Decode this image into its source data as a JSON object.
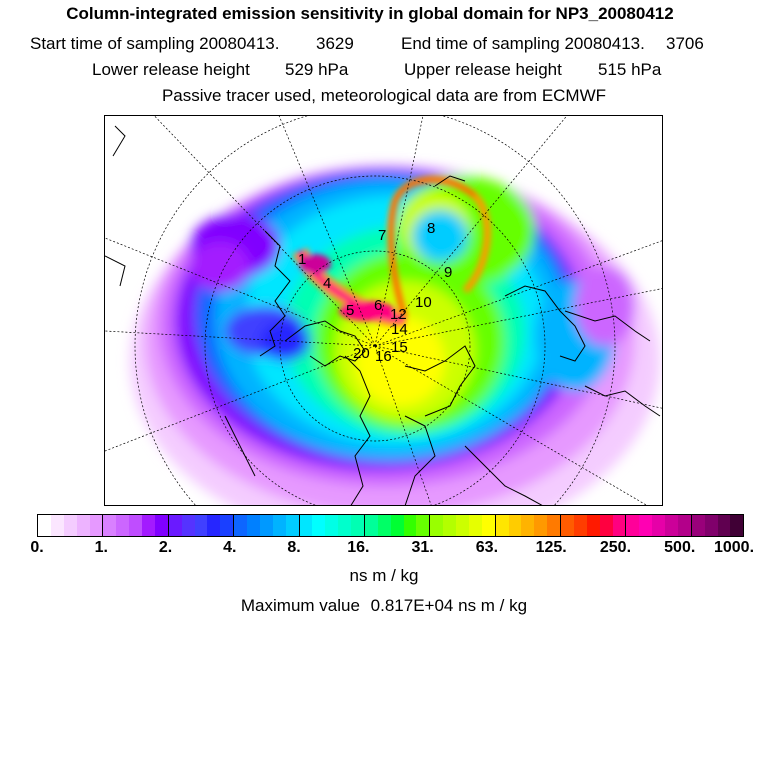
{
  "header": {
    "title": "Column-integrated emission sensitivity in global domain for NP3_20080412",
    "start_label": "Start time of sampling 20080413.",
    "start_value": "3629",
    "end_label": "End time of sampling 20080413.",
    "end_value": "3706",
    "lower_label": "Lower release height",
    "lower_value": "529 hPa",
    "upper_label": "Upper release height",
    "upper_value": "515 hPa",
    "note": "Passive tracer used, meteorological data are from ECMWF"
  },
  "map": {
    "track_labels": [
      "1",
      "4",
      "5",
      "6",
      "7",
      "8",
      "9",
      "10",
      "12",
      "14",
      "15",
      "20",
      "16"
    ]
  },
  "colorbar": {
    "colors": [
      "#ffffff",
      "#fbe6ff",
      "#f4ccff",
      "#edb3ff",
      "#e699ff",
      "#d980ff",
      "#cc66ff",
      "#bf4dff",
      "#a31aff",
      "#8000ff",
      "#6a1aff",
      "#5533ff",
      "#4040ff",
      "#2626ff",
      "#1a40ff",
      "#0d66ff",
      "#0080ff",
      "#0099ff",
      "#00b3ff",
      "#00ccff",
      "#00e6ff",
      "#00ffff",
      "#00ffe6",
      "#00ffcc",
      "#00ffb3",
      "#00ff99",
      "#00ff66",
      "#00ff33",
      "#33ff00",
      "#66ff00",
      "#99ff00",
      "#b3ff00",
      "#ccff00",
      "#e6ff00",
      "#ffff00",
      "#ffe600",
      "#ffcc00",
      "#ffb300",
      "#ff9900",
      "#ff7a00",
      "#ff5c00",
      "#ff3d00",
      "#ff1a00",
      "#ff0040",
      "#ff0080",
      "#ff0099",
      "#ff00b3",
      "#e600a8",
      "#cc0099",
      "#b3008a",
      "#99007a",
      "#80006b",
      "#600050",
      "#400035"
    ],
    "tick_labels": [
      "0.",
      "1.",
      "2.",
      "4.",
      "8.",
      "16.",
      "31.",
      "63.",
      "125.",
      "250.",
      "500.",
      "1000."
    ],
    "unit": "ns m / kg"
  },
  "footer": {
    "max_label": "Maximum value",
    "max_value": "0.817E+04",
    "max_unit": "ns m / kg"
  }
}
